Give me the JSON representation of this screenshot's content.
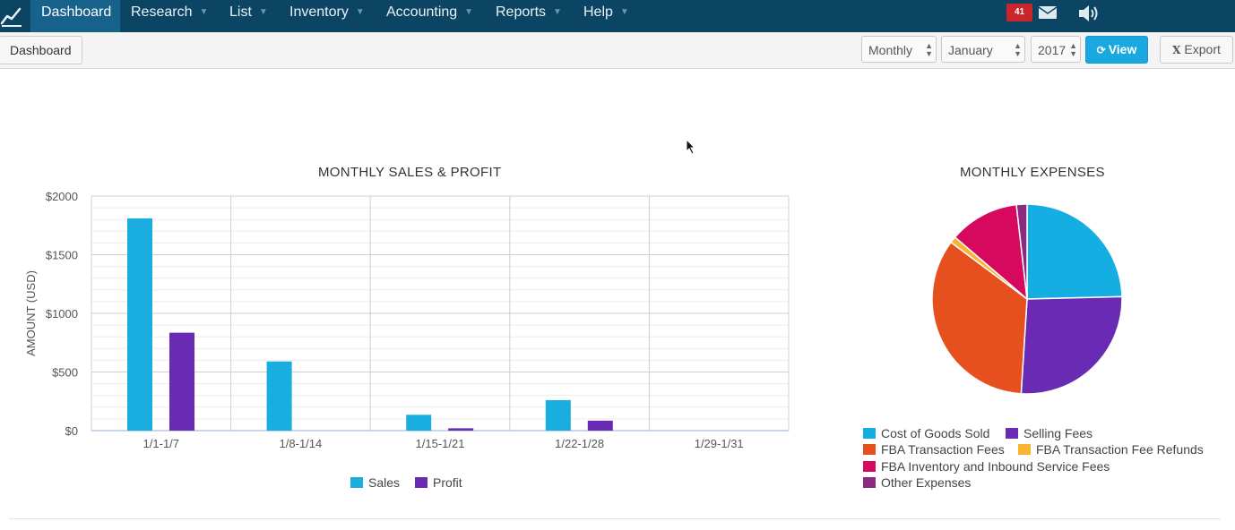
{
  "nav": {
    "items": [
      {
        "label": "Dashboard",
        "active": true,
        "caret": false
      },
      {
        "label": "Research",
        "caret": true
      },
      {
        "label": "List",
        "caret": true
      },
      {
        "label": "Inventory",
        "caret": true
      },
      {
        "label": "Accounting",
        "caret": true
      },
      {
        "label": "Reports",
        "caret": true
      },
      {
        "label": "Help",
        "caret": true
      }
    ],
    "notification_count": "41",
    "icons": [
      "logo-chart-icon",
      "mail-icon",
      "speaker-icon"
    ]
  },
  "toolbar": {
    "breadcrumb": "Dashboard",
    "period_select": "Monthly",
    "month_select": "January",
    "year_select": "2017",
    "view_label": "View",
    "export_label": "Export"
  },
  "colors": {
    "nav_bg": "#0c4463",
    "nav_active": "#17628b",
    "accent": "#1aa8e0",
    "sales": "#1aaee0",
    "profit": "#6a2bb4"
  },
  "chart_data": [
    {
      "type": "bar",
      "title": "MONTHLY SALES & PROFIT",
      "ylabel": "AMOUNT (USD)",
      "xlabel": "",
      "categories": [
        "1/1-1/7",
        "1/8-1/14",
        "1/15-1/21",
        "1/22-1/28",
        "1/29-1/31"
      ],
      "series": [
        {
          "name": "Sales",
          "color": "#1aaee0",
          "values": [
            1810,
            590,
            135,
            260,
            0
          ]
        },
        {
          "name": "Profit",
          "color": "#6a2bb4",
          "values": [
            835,
            0,
            20,
            85,
            0
          ]
        }
      ],
      "ylim": [
        0,
        2000
      ],
      "yticks": [
        0,
        500,
        1000,
        1500,
        2000
      ],
      "ytick_labels": [
        "$0",
        "$500",
        "$1000",
        "$1500",
        "$2000"
      ],
      "grid": true,
      "legend": "bottom"
    },
    {
      "type": "pie",
      "title": "MONTHLY EXPENSES",
      "slices": [
        {
          "label": "Cost of Goods Sold",
          "value": 24.6,
          "color": "#15aee2"
        },
        {
          "label": "Selling Fees",
          "value": 26.4,
          "color": "#6a2bb4"
        },
        {
          "label": "FBA Transaction Fees",
          "value": 34.2,
          "color": "#e6501f"
        },
        {
          "label": "FBA Transaction Fee Refunds",
          "value": 1.1,
          "color": "#f8b333"
        },
        {
          "label": "FBA Inventory and Inbound Service Fees",
          "value": 11.9,
          "color": "#d6095f"
        },
        {
          "label": "Other Expenses",
          "value": 1.8,
          "color": "#8b2a7e"
        }
      ],
      "legend": "bottom"
    }
  ]
}
